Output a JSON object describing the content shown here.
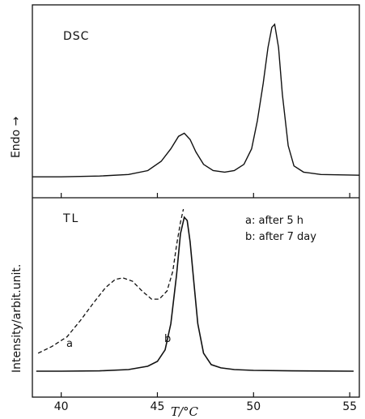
{
  "chart_data": [
    {
      "type": "line",
      "panel_label": "DSC",
      "ylabel": "Endo →",
      "xlim": [
        38.5,
        55.5
      ],
      "xticks": [
        40,
        45,
        50,
        55
      ],
      "series": [
        {
          "x": [
            38.5,
            40,
            42,
            43.5,
            44.5,
            45.2,
            45.7,
            46.1,
            46.4,
            46.7,
            47.0,
            47.4,
            47.9,
            48.5,
            49.0,
            49.5,
            49.9,
            50.2,
            50.5,
            50.75,
            50.95,
            51.1,
            51.3,
            51.5,
            51.8,
            52.1,
            52.6,
            53.5,
            55.5
          ],
          "y": [
            0.02,
            0.02,
            0.025,
            0.035,
            0.06,
            0.12,
            0.2,
            0.28,
            0.3,
            0.26,
            0.18,
            0.1,
            0.06,
            0.05,
            0.06,
            0.1,
            0.2,
            0.38,
            0.62,
            0.85,
            0.98,
            1.0,
            0.85,
            0.55,
            0.22,
            0.09,
            0.05,
            0.035,
            0.03
          ]
        }
      ]
    },
    {
      "type": "line",
      "panel_label": "TL",
      "ylabel": "Intensity/arbit.unit.",
      "xlabel": "T/°C",
      "xlim": [
        38.5,
        55.5
      ],
      "xticks": [
        40,
        45,
        50,
        55
      ],
      "legend": [
        "a: after 5 h",
        "b: after 7 day"
      ],
      "series": [
        {
          "name": "a",
          "style": "dashed",
          "x": [
            38.8,
            39.5,
            40.3,
            41.0,
            41.7,
            42.3,
            42.8,
            43.2,
            43.7,
            44.2,
            44.7,
            45.1,
            45.5,
            45.8,
            46.0,
            46.2,
            46.35
          ],
          "y": [
            0.12,
            0.16,
            0.22,
            0.32,
            0.43,
            0.52,
            0.57,
            0.58,
            0.56,
            0.5,
            0.45,
            0.45,
            0.5,
            0.62,
            0.78,
            0.92,
            1.0
          ]
        },
        {
          "name": "b",
          "style": "solid",
          "x": [
            38.7,
            40,
            42,
            43.5,
            44.5,
            45.0,
            45.4,
            45.7,
            46.0,
            46.2,
            46.4,
            46.55,
            46.7,
            46.9,
            47.1,
            47.4,
            47.8,
            48.3,
            49.0,
            50,
            52,
            55.2
          ],
          "y": [
            0.01,
            0.01,
            0.012,
            0.02,
            0.04,
            0.07,
            0.14,
            0.3,
            0.6,
            0.85,
            0.95,
            0.93,
            0.8,
            0.55,
            0.3,
            0.12,
            0.05,
            0.03,
            0.02,
            0.015,
            0.012,
            0.01
          ]
        }
      ],
      "annotations": [
        "a",
        "b"
      ]
    }
  ]
}
